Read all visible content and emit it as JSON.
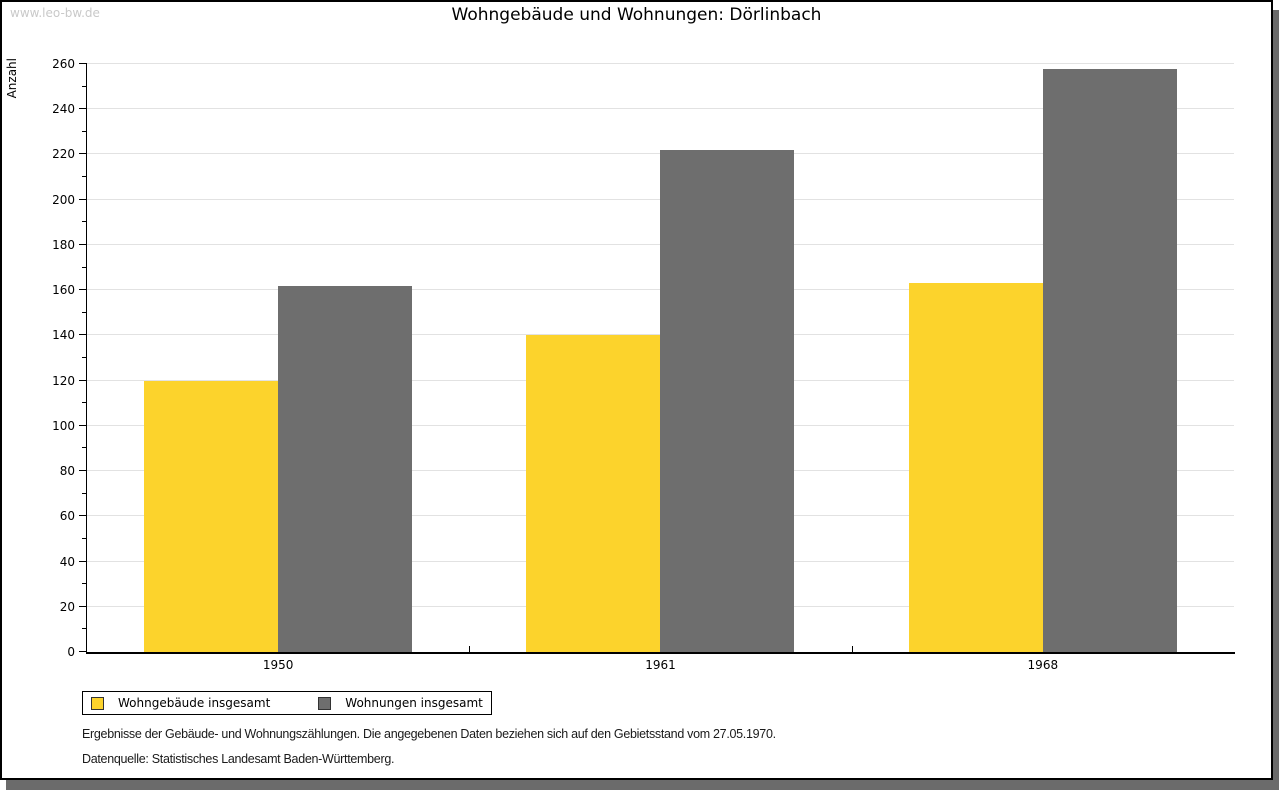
{
  "watermark": "www.leo-bw.de",
  "title": "Wohngebäude und Wohnungen: Dörlinbach",
  "chart_data": {
    "type": "bar",
    "title": "Wohngebäude und Wohnungen: Dörlinbach",
    "xlabel": "",
    "ylabel": "Anzahl",
    "categories": [
      "1950",
      "1961",
      "1968"
    ],
    "series": [
      {
        "name": "Wohngebäude insgesamt",
        "color": "#fcd32c",
        "values": [
          120,
          140,
          163
        ]
      },
      {
        "name": "Wohnungen insgesamt",
        "color": "#6e6e6e",
        "values": [
          162,
          222,
          258
        ]
      }
    ],
    "ylim": [
      0,
      260
    ],
    "ytick_step": 20,
    "yminor_step": 10,
    "grid": "horizontal-major",
    "legend_position": "bottom-left"
  },
  "footer": {
    "line1": "Ergebnisse der Gebäude- und Wohnungszählungen. Die angegebenen Daten beziehen sich auf den Gebietsstand vom 27.05.1970.",
    "line2": "Datenquelle: Statistisches Landesamt Baden-Württemberg."
  },
  "colors": {
    "bar_yellow": "#fcd32c",
    "bar_gray": "#6e6e6e",
    "gridline": "#e2e2e2",
    "shadow": "#6b6b6b",
    "watermark": "#c9c9c9"
  }
}
